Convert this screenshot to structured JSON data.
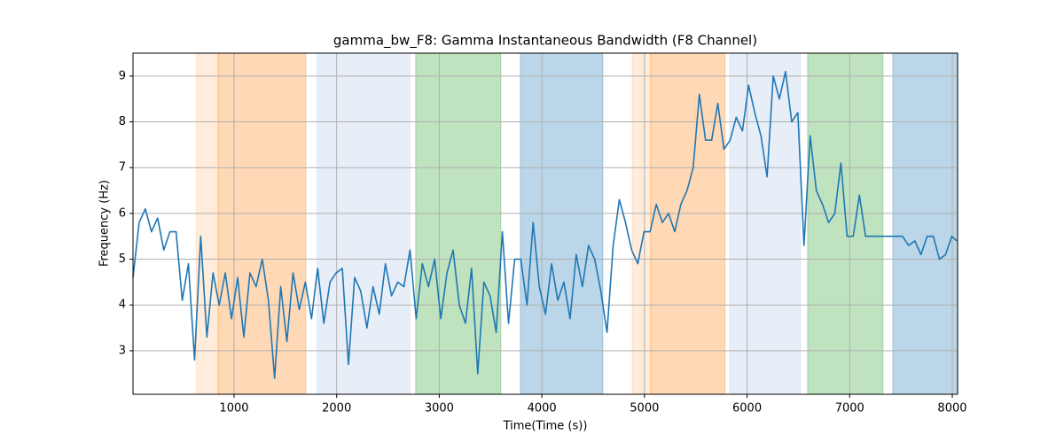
{
  "chart_data": {
    "type": "line",
    "title": "gamma_bw_F8: Gamma Instantaneous Bandwidth (F8 Channel)",
    "xlabel": "Time(Time (s))",
    "ylabel": "Frequency (Hz)",
    "xlim": [
      15,
      8052
    ],
    "ylim": [
      2.05,
      9.5
    ],
    "xticks": [
      1000,
      2000,
      3000,
      4000,
      5000,
      6000,
      7000,
      8000
    ],
    "yticks": [
      3,
      4,
      5,
      6,
      7,
      8,
      9
    ],
    "grid": true,
    "spans": [
      {
        "start": 630,
        "end": 846,
        "color": "#ff7f0e",
        "alpha": 0.15
      },
      {
        "start": 846,
        "end": 1700,
        "color": "#ff7f0e",
        "alpha": 0.3
      },
      {
        "start": 1810,
        "end": 2715,
        "color": "#aec7e8",
        "alpha": 0.3
      },
      {
        "start": 2770,
        "end": 3600,
        "color": "#2ca02c",
        "alpha": 0.3
      },
      {
        "start": 3790,
        "end": 4595,
        "color": "#1f77b4",
        "alpha": 0.3
      },
      {
        "start": 4880,
        "end": 5060,
        "color": "#ff7f0e",
        "alpha": 0.15
      },
      {
        "start": 5060,
        "end": 5785,
        "color": "#ff7f0e",
        "alpha": 0.3
      },
      {
        "start": 5830,
        "end": 6520,
        "color": "#aec7e8",
        "alpha": 0.3
      },
      {
        "start": 6590,
        "end": 7325,
        "color": "#2ca02c",
        "alpha": 0.3
      },
      {
        "start": 7420,
        "end": 8052,
        "color": "#1f77b4",
        "alpha": 0.3
      }
    ],
    "x": [
      15,
      75,
      135,
      195,
      255,
      315,
      375,
      435,
      495,
      555,
      615,
      675,
      735,
      795,
      855,
      915,
      975,
      1035,
      1095,
      1155,
      1215,
      1275,
      1335,
      1395,
      1455,
      1515,
      1575,
      1635,
      1695,
      1755,
      1815,
      1875,
      1935,
      1995,
      2055,
      2115,
      2175,
      2235,
      2295,
      2355,
      2415,
      2475,
      2535,
      2595,
      2655,
      2715,
      2775,
      2835,
      2895,
      2955,
      3015,
      3075,
      3135,
      3195,
      3255,
      3315,
      3375,
      3435,
      3495,
      3555,
      3615,
      3675,
      3735,
      3795,
      3855,
      3915,
      3975,
      4035,
      4095,
      4155,
      4215,
      4275,
      4335,
      4395,
      4455,
      4515,
      4575,
      4635,
      4695,
      4755,
      4815,
      4875,
      4935,
      4995,
      5055,
      5115,
      5175,
      5235,
      5295,
      5355,
      5415,
      5475,
      5535,
      5595,
      5655,
      5715,
      5775,
      5835,
      5895,
      5955,
      6015,
      6075,
      6135,
      6195,
      6255,
      6315,
      6375,
      6435,
      6495,
      6555,
      6615,
      6675,
      6735,
      6795,
      6855,
      6915,
      6975,
      7035,
      7095,
      7155,
      7215,
      7275,
      7335,
      7395,
      7455,
      7515,
      7575,
      7635,
      7695,
      7755,
      7815,
      7875,
      7935,
      7995,
      8045
    ],
    "series": [
      {
        "color": "#1f77b4",
        "values": [
          4.6,
          5.8,
          6.1,
          5.6,
          5.9,
          5.2,
          5.6,
          5.6,
          4.1,
          4.9,
          2.8,
          5.5,
          3.3,
          4.7,
          4.0,
          4.7,
          3.7,
          4.6,
          3.3,
          4.7,
          4.4,
          5.0,
          4.1,
          2.4,
          4.4,
          3.2,
          4.7,
          3.9,
          4.5,
          3.7,
          4.8,
          3.6,
          4.5,
          4.7,
          4.8,
          2.7,
          4.6,
          4.3,
          3.5,
          4.4,
          3.8,
          4.9,
          4.2,
          4.5,
          4.4,
          5.2,
          3.7,
          4.9,
          4.4,
          5.0,
          3.7,
          4.7,
          5.2,
          4.0,
          3.6,
          4.8,
          2.5,
          4.5,
          4.2,
          3.4,
          5.6,
          3.6,
          5.0,
          5.0,
          4.0,
          5.8,
          4.4,
          3.8,
          4.9,
          4.1,
          4.5,
          3.7,
          5.1,
          4.4,
          5.3,
          5.0,
          4.3,
          3.4,
          5.3,
          6.3,
          5.8,
          5.2,
          4.9,
          5.6,
          5.6,
          6.2,
          5.8,
          6.0,
          5.6,
          6.2,
          6.5,
          7.0,
          8.6,
          7.6,
          7.6,
          8.4,
          7.4,
          7.6,
          8.1,
          7.8,
          8.8,
          8.2,
          7.7,
          6.8,
          9.0,
          8.5,
          9.1,
          8.0,
          8.2,
          5.3,
          7.7,
          6.5,
          6.2,
          5.8,
          6.0,
          7.1,
          5.5,
          5.5,
          6.4,
          5.5,
          5.5,
          5.5,
          5.5,
          5.5,
          5.5,
          5.5,
          5.3,
          5.4,
          5.1,
          5.5,
          5.5,
          5.0,
          5.1,
          5.5,
          5.4
        ]
      }
    ]
  }
}
